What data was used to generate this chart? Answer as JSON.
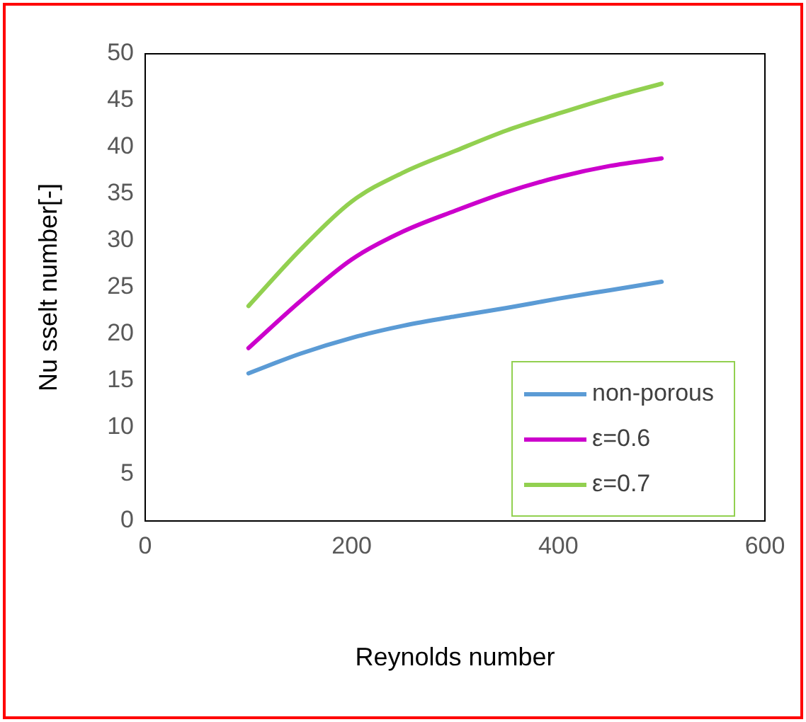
{
  "chart_data": {
    "type": "line",
    "xlabel": "Reynolds number",
    "ylabel": "Nu sselt number[-]",
    "xlim": [
      0,
      600
    ],
    "xticks": [
      0,
      200,
      400,
      600
    ],
    "ylim": [
      0,
      50
    ],
    "yticks": [
      0,
      5,
      10,
      15,
      20,
      25,
      30,
      35,
      40,
      45,
      50
    ],
    "grid": false,
    "legend": "bottom right",
    "marker": "none",
    "line_style": "solid",
    "x": [
      100,
      150,
      200,
      250,
      300,
      350,
      400,
      450,
      500
    ],
    "series": [
      {
        "name": "non-porous",
        "color": "#5b9bd5",
        "values": [
          15.8,
          17.9,
          19.6,
          20.9,
          21.9,
          22.8,
          23.8,
          24.7,
          25.6
        ]
      },
      {
        "name": "ε=0.6",
        "color": "#cc00cc",
        "values": [
          18.5,
          23.5,
          28,
          31,
          33.2,
          35.2,
          36.8,
          38,
          38.8
        ]
      },
      {
        "name": "ε=0.7",
        "color": "#92d050",
        "values": [
          23,
          29,
          34.2,
          37.3,
          39.6,
          41.8,
          43.6,
          45.3,
          46.8
        ]
      }
    ]
  }
}
